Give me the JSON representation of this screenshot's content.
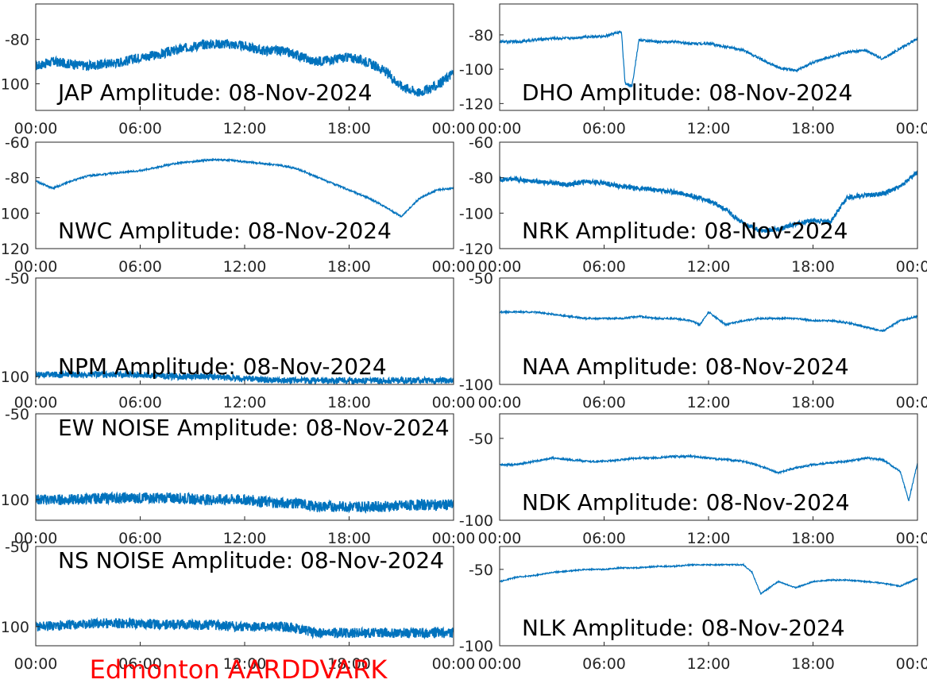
{
  "footer": {
    "title": "Edmonton AARDDVARK",
    "color": "#ff0000"
  },
  "chart_data": [
    {
      "type": "line",
      "title": "JAP Amplitude: 08-Nov-2024",
      "xlabel": "",
      "ylabel": "",
      "x_ticks": [
        "00:00",
        "06:00",
        "12:00",
        "18:00",
        "00:00"
      ],
      "y_ticks": [
        -80,
        -100
      ],
      "y_tick_labels": [
        "-80",
        "-100"
      ],
      "ylim": [
        -112,
        -64
      ],
      "color": "#0072bd",
      "noise": 2.2,
      "series": [
        {
          "x": [
            0,
            1,
            2,
            3,
            4,
            5,
            6,
            7,
            8,
            9,
            10,
            11,
            12,
            13,
            14,
            15,
            16,
            17,
            18,
            19,
            20,
            21,
            22,
            23,
            24
          ],
          "y": [
            -92,
            -90,
            -91,
            -92,
            -91,
            -90,
            -88,
            -87,
            -85,
            -83,
            -82,
            -82,
            -83,
            -85,
            -85,
            -87,
            -90,
            -89,
            -88,
            -90,
            -94,
            -101,
            -104,
            -101,
            -95
          ]
        }
      ]
    },
    {
      "type": "line",
      "title": "DHO Amplitude: 08-Nov-2024",
      "xlabel": "",
      "ylabel": "",
      "x_ticks": [
        "00:00",
        "06:00",
        "12:00",
        "18:00",
        "00:00"
      ],
      "y_ticks": [
        -80,
        -100,
        -120
      ],
      "y_tick_labels": [
        "-80",
        "-100",
        "-120"
      ],
      "ylim": [
        -124,
        -62
      ],
      "color": "#0072bd",
      "noise": 0.8,
      "series": [
        {
          "x": [
            0,
            1,
            2,
            3,
            4,
            5,
            6,
            7,
            7.2,
            7.6,
            8,
            9,
            10,
            11,
            12,
            13,
            14,
            15,
            16,
            17,
            18,
            19,
            20,
            21,
            22,
            23,
            24
          ],
          "y": [
            -84,
            -84,
            -83,
            -82,
            -82,
            -81,
            -81,
            -78,
            -108,
            -110,
            -83,
            -84,
            -84,
            -85,
            -85,
            -87,
            -89,
            -94,
            -99,
            -101,
            -96,
            -93,
            -90,
            -89,
            -94,
            -88,
            -82
          ]
        }
      ]
    },
    {
      "type": "line",
      "title": "NWC Amplitude: 08-Nov-2024",
      "xlabel": "",
      "ylabel": "",
      "x_ticks": [
        "00:00",
        "06:00",
        "12:00",
        "18:00",
        "00:00"
      ],
      "y_ticks": [
        -60,
        -80,
        -100,
        -120
      ],
      "y_tick_labels": [
        "-60",
        "-80",
        "-100",
        "-120"
      ],
      "ylim": [
        -120,
        -60
      ],
      "color": "#0072bd",
      "noise": 0.5,
      "series": [
        {
          "x": [
            0,
            1,
            2,
            3,
            4,
            5,
            6,
            7,
            8,
            9,
            10,
            11,
            12,
            13,
            14,
            15,
            16,
            17,
            18,
            19,
            20,
            21,
            22,
            23,
            24
          ],
          "y": [
            -82,
            -86,
            -82,
            -79,
            -78,
            -77,
            -76,
            -74,
            -72,
            -71,
            -70,
            -70,
            -71,
            -72,
            -73,
            -75,
            -79,
            -83,
            -87,
            -91,
            -96,
            -102,
            -92,
            -87,
            -86
          ]
        }
      ]
    },
    {
      "type": "line",
      "title": "NRK Amplitude: 08-Nov-2024",
      "xlabel": "",
      "ylabel": "",
      "x_ticks": [
        "00:00",
        "06:00",
        "12:00",
        "18:00",
        "00:00"
      ],
      "y_ticks": [
        -60,
        -80,
        -100,
        -120
      ],
      "y_tick_labels": [
        "-60",
        "-80",
        "-100",
        "-120"
      ],
      "ylim": [
        -120,
        -60
      ],
      "color": "#0072bd",
      "noise": 1.3,
      "series": [
        {
          "x": [
            0,
            1,
            2,
            3,
            4,
            5,
            6,
            7,
            8,
            9,
            10,
            11,
            12,
            13,
            14,
            15,
            16,
            17,
            18,
            19,
            20,
            21,
            22,
            23,
            24
          ],
          "y": [
            -81,
            -81,
            -82,
            -83,
            -84,
            -82,
            -83,
            -85,
            -86,
            -87,
            -88,
            -90,
            -93,
            -98,
            -106,
            -110,
            -109,
            -106,
            -104,
            -105,
            -91,
            -90,
            -89,
            -85,
            -77
          ]
        }
      ]
    },
    {
      "type": "line",
      "title": "NPM Amplitude: 08-Nov-2024",
      "xlabel": "",
      "ylabel": "",
      "x_ticks": [
        "00:00",
        "06:00",
        "12:00",
        "18:00",
        "00:00"
      ],
      "y_ticks": [
        -50,
        -100
      ],
      "y_tick_labels": [
        "-50",
        "-100"
      ],
      "ylim": [
        -104,
        -50
      ],
      "color": "#0072bd",
      "noise": 1.6,
      "series": [
        {
          "x": [
            0,
            2,
            4,
            6,
            8,
            10,
            12,
            14,
            16,
            18,
            20,
            22,
            24
          ],
          "y": [
            -99,
            -99,
            -99,
            -99,
            -100,
            -100,
            -101,
            -102,
            -102,
            -102,
            -102,
            -102,
            -102
          ]
        }
      ]
    },
    {
      "type": "line",
      "title": "NAA Amplitude: 08-Nov-2024",
      "xlabel": "",
      "ylabel": "",
      "x_ticks": [
        "00:00",
        "06:00",
        "12:00",
        "18:00",
        "00:00"
      ],
      "y_ticks": [
        -50,
        -100
      ],
      "y_tick_labels": [
        "-50",
        "-100"
      ],
      "ylim": [
        -100,
        -50
      ],
      "color": "#0072bd",
      "noise": 0.4,
      "series": [
        {
          "x": [
            0,
            1,
            2,
            3,
            4,
            5,
            6,
            7,
            8,
            9,
            10,
            11,
            11.5,
            12,
            13,
            14,
            15,
            16,
            17,
            18,
            19,
            20,
            21,
            22,
            23,
            24
          ],
          "y": [
            -66,
            -66,
            -66,
            -67,
            -68,
            -69,
            -69,
            -69,
            -68,
            -69,
            -69,
            -70,
            -72,
            -66,
            -72,
            -70,
            -69,
            -69,
            -69,
            -70,
            -70,
            -71,
            -73,
            -75,
            -70,
            -68
          ]
        }
      ]
    },
    {
      "type": "line",
      "title": "EW NOISE Amplitude: 08-Nov-2024",
      "xlabel": "",
      "ylabel": "",
      "x_ticks": [
        "00:00",
        "06:00",
        "12:00",
        "18:00",
        "00:00"
      ],
      "y_ticks": [
        -50,
        -100
      ],
      "y_tick_labels": [
        "-50",
        "-100"
      ],
      "ylim": [
        -112,
        -50
      ],
      "color": "#0072bd",
      "noise": 3.2,
      "series": [
        {
          "x": [
            0,
            2,
            4,
            6,
            8,
            10,
            12,
            14,
            15,
            16,
            18,
            20,
            22,
            24
          ],
          "y": [
            -100,
            -100,
            -99,
            -99,
            -99,
            -100,
            -100,
            -102,
            -102,
            -104,
            -104,
            -104,
            -103,
            -103
          ]
        }
      ]
    },
    {
      "type": "line",
      "title": "NDK Amplitude: 08-Nov-2024",
      "xlabel": "",
      "ylabel": "",
      "x_ticks": [
        "00:00",
        "06:00",
        "12:00",
        "18:00",
        "00:00"
      ],
      "y_ticks": [
        -50,
        -100
      ],
      "y_tick_labels": [
        "-50",
        "-100"
      ],
      "ylim": [
        -100,
        -35
      ],
      "color": "#0072bd",
      "noise": 0.6,
      "series": [
        {
          "x": [
            0,
            1,
            2,
            3,
            4,
            5,
            6,
            7,
            8,
            9,
            10,
            11,
            12,
            13,
            14,
            15,
            16,
            17,
            18,
            19,
            20,
            21,
            22,
            23,
            23.5,
            24
          ],
          "y": [
            -66,
            -66,
            -64,
            -62,
            -63,
            -64,
            -64,
            -63,
            -62,
            -62,
            -61,
            -61,
            -62,
            -63,
            -64,
            -67,
            -71,
            -68,
            -66,
            -65,
            -64,
            -62,
            -63,
            -70,
            -88,
            -65
          ]
        }
      ]
    },
    {
      "type": "line",
      "title": "NS NOISE Amplitude: 08-Nov-2024",
      "xlabel": "",
      "ylabel": "",
      "x_ticks": [
        "00:00",
        "06:00",
        "12:00",
        "18:00",
        "00:00"
      ],
      "y_ticks": [
        -50,
        -100
      ],
      "y_tick_labels": [
        "-50",
        "-100"
      ],
      "ylim": [
        -112,
        -50
      ],
      "color": "#0072bd",
      "noise": 3.2,
      "series": [
        {
          "x": [
            0,
            2,
            4,
            6,
            8,
            10,
            12,
            14,
            15,
            16,
            18,
            20,
            22,
            24
          ],
          "y": [
            -100,
            -99,
            -98,
            -98,
            -99,
            -99,
            -100,
            -100,
            -101,
            -104,
            -104,
            -104,
            -104,
            -104
          ]
        }
      ]
    },
    {
      "type": "line",
      "title": "NLK Amplitude: 08-Nov-2024",
      "xlabel": "",
      "ylabel": "",
      "x_ticks": [
        "00:00",
        "06:00",
        "12:00",
        "18:00",
        "00:00"
      ],
      "y_ticks": [
        -50,
        -100
      ],
      "y_tick_labels": [
        "-50",
        "-100"
      ],
      "ylim": [
        -100,
        -35
      ],
      "color": "#0072bd",
      "noise": 0.4,
      "series": [
        {
          "x": [
            0,
            1,
            2,
            3,
            4,
            5,
            6,
            7,
            8,
            9,
            10,
            11,
            12,
            13,
            14,
            14.5,
            15,
            16,
            17,
            18,
            19,
            20,
            21,
            22,
            23,
            24
          ],
          "y": [
            -58,
            -55,
            -54,
            -52,
            -51,
            -50,
            -50,
            -49,
            -49,
            -48,
            -48,
            -47,
            -47,
            -47,
            -47,
            -52,
            -66,
            -58,
            -62,
            -58,
            -57,
            -57,
            -58,
            -59,
            -61,
            -56
          ]
        }
      ]
    }
  ]
}
